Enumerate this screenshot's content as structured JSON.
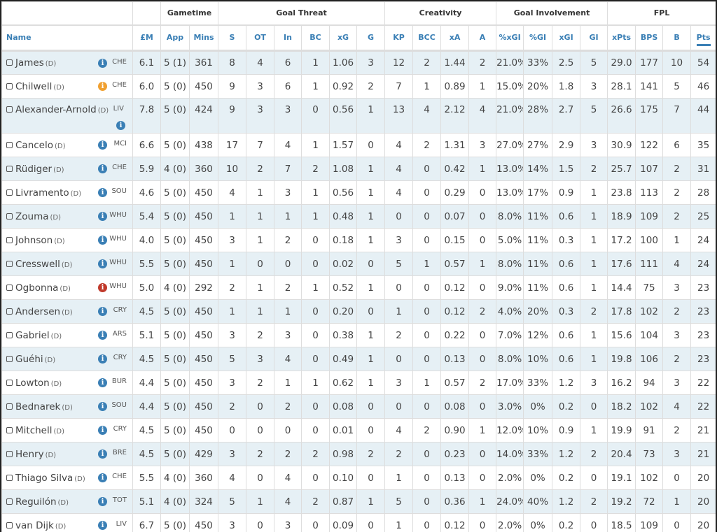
{
  "groups": [
    {
      "label": "",
      "span": 1
    },
    {
      "label": "",
      "span": 1
    },
    {
      "label": "Gametime",
      "span": 2
    },
    {
      "label": "Goal Threat",
      "span": 6
    },
    {
      "label": "Creativity",
      "span": 4
    },
    {
      "label": "Goal Involvement",
      "span": 4
    },
    {
      "label": "FPL",
      "span": 4
    }
  ],
  "columns": [
    "Name",
    "£M",
    "App",
    "Mins",
    "S",
    "OT",
    "In",
    "BC",
    "xG",
    "G",
    "KP",
    "BCC",
    "xA",
    "A",
    "%xGI",
    "%GI",
    "xGI",
    "GI",
    "xPts",
    "BPS",
    "B",
    "Pts"
  ],
  "sorted_column": "Pts",
  "info_colors": {
    "blue": "#3a7fb5",
    "orange": "#f0a030",
    "red": "#c0392b"
  },
  "rows": [
    {
      "name": "James",
      "pos": "(D)",
      "team": "CHE",
      "info": "blue",
      "v": [
        "6.1",
        "5 (1)",
        "361",
        "8",
        "4",
        "6",
        "1",
        "1.06",
        "3",
        "12",
        "2",
        "1.44",
        "2",
        "21.0%",
        "33%",
        "2.5",
        "5",
        "29.0",
        "177",
        "10",
        "54"
      ]
    },
    {
      "name": "Chilwell",
      "pos": "(D)",
      "team": "CHE",
      "info": "orange",
      "v": [
        "6.0",
        "5 (0)",
        "450",
        "9",
        "3",
        "6",
        "1",
        "0.92",
        "2",
        "7",
        "1",
        "0.89",
        "1",
        "15.0%",
        "20%",
        "1.8",
        "3",
        "28.1",
        "141",
        "5",
        "46"
      ]
    },
    {
      "name": "Alexander-Arnold",
      "pos": "(D)",
      "team": "LIV",
      "info": "blue",
      "v": [
        "7.8",
        "5 (0)",
        "424",
        "9",
        "3",
        "3",
        "0",
        "0.56",
        "1",
        "13",
        "4",
        "2.12",
        "4",
        "21.0%",
        "28%",
        "2.7",
        "5",
        "26.6",
        "175",
        "7",
        "44"
      ]
    },
    {
      "name": "Cancelo",
      "pos": "(D)",
      "team": "MCI",
      "info": "blue",
      "v": [
        "6.6",
        "5 (0)",
        "438",
        "17",
        "7",
        "4",
        "1",
        "1.57",
        "0",
        "4",
        "2",
        "1.31",
        "3",
        "27.0%",
        "27%",
        "2.9",
        "3",
        "30.9",
        "122",
        "6",
        "35"
      ]
    },
    {
      "name": "Rüdiger",
      "pos": "(D)",
      "team": "CHE",
      "info": "blue",
      "v": [
        "5.9",
        "4 (0)",
        "360",
        "10",
        "2",
        "7",
        "2",
        "1.08",
        "1",
        "4",
        "0",
        "0.42",
        "1",
        "13.0%",
        "14%",
        "1.5",
        "2",
        "25.7",
        "107",
        "2",
        "31"
      ]
    },
    {
      "name": "Livramento",
      "pos": "(D)",
      "team": "SOU",
      "info": "blue",
      "v": [
        "4.6",
        "5 (0)",
        "450",
        "4",
        "1",
        "3",
        "1",
        "0.56",
        "1",
        "4",
        "0",
        "0.29",
        "0",
        "13.0%",
        "17%",
        "0.9",
        "1",
        "23.8",
        "113",
        "2",
        "28"
      ]
    },
    {
      "name": "Zouma",
      "pos": "(D)",
      "team": "WHU",
      "info": "blue",
      "v": [
        "5.4",
        "5 (0)",
        "450",
        "1",
        "1",
        "1",
        "1",
        "0.48",
        "1",
        "0",
        "0",
        "0.07",
        "0",
        "8.0%",
        "11%",
        "0.6",
        "1",
        "18.9",
        "109",
        "2",
        "25"
      ]
    },
    {
      "name": "Johnson",
      "pos": "(D)",
      "team": "WHU",
      "info": "blue",
      "v": [
        "4.0",
        "5 (0)",
        "450",
        "3",
        "1",
        "2",
        "0",
        "0.18",
        "1",
        "3",
        "0",
        "0.15",
        "0",
        "5.0%",
        "11%",
        "0.3",
        "1",
        "17.2",
        "100",
        "1",
        "24"
      ]
    },
    {
      "name": "Cresswell",
      "pos": "(D)",
      "team": "WHU",
      "info": "blue",
      "v": [
        "5.5",
        "5 (0)",
        "450",
        "1",
        "0",
        "0",
        "0",
        "0.02",
        "0",
        "5",
        "1",
        "0.57",
        "1",
        "8.0%",
        "11%",
        "0.6",
        "1",
        "17.6",
        "111",
        "4",
        "24"
      ]
    },
    {
      "name": "Ogbonna",
      "pos": "(D)",
      "team": "WHU",
      "info": "red",
      "v": [
        "5.0",
        "4 (0)",
        "292",
        "2",
        "1",
        "2",
        "1",
        "0.52",
        "1",
        "0",
        "0",
        "0.12",
        "0",
        "9.0%",
        "11%",
        "0.6",
        "1",
        "14.4",
        "75",
        "3",
        "23"
      ]
    },
    {
      "name": "Andersen",
      "pos": "(D)",
      "team": "CRY",
      "info": "blue",
      "v": [
        "4.5",
        "5 (0)",
        "450",
        "1",
        "1",
        "1",
        "0",
        "0.20",
        "0",
        "1",
        "0",
        "0.12",
        "2",
        "4.0%",
        "20%",
        "0.3",
        "2",
        "17.8",
        "102",
        "2",
        "23"
      ]
    },
    {
      "name": "Gabriel",
      "pos": "(D)",
      "team": "ARS",
      "info": "blue",
      "v": [
        "5.1",
        "5 (0)",
        "450",
        "3",
        "2",
        "3",
        "0",
        "0.38",
        "1",
        "2",
        "0",
        "0.22",
        "0",
        "7.0%",
        "12%",
        "0.6",
        "1",
        "15.6",
        "104",
        "3",
        "23"
      ]
    },
    {
      "name": "Guéhi",
      "pos": "(D)",
      "team": "CRY",
      "info": "blue",
      "v": [
        "4.5",
        "5 (0)",
        "450",
        "5",
        "3",
        "4",
        "0",
        "0.49",
        "1",
        "0",
        "0",
        "0.13",
        "0",
        "8.0%",
        "10%",
        "0.6",
        "1",
        "19.8",
        "106",
        "2",
        "23"
      ]
    },
    {
      "name": "Lowton",
      "pos": "(D)",
      "team": "BUR",
      "info": "blue",
      "v": [
        "4.4",
        "5 (0)",
        "450",
        "3",
        "2",
        "1",
        "1",
        "0.62",
        "1",
        "3",
        "1",
        "0.57",
        "2",
        "17.0%",
        "33%",
        "1.2",
        "3",
        "16.2",
        "94",
        "3",
        "22"
      ]
    },
    {
      "name": "Bednarek",
      "pos": "(D)",
      "team": "SOU",
      "info": "blue",
      "v": [
        "4.4",
        "5 (0)",
        "450",
        "2",
        "0",
        "2",
        "0",
        "0.08",
        "0",
        "0",
        "0",
        "0.08",
        "0",
        "3.0%",
        "0%",
        "0.2",
        "0",
        "18.2",
        "102",
        "4",
        "22"
      ]
    },
    {
      "name": "Mitchell",
      "pos": "(D)",
      "team": "CRY",
      "info": "blue",
      "v": [
        "4.5",
        "5 (0)",
        "450",
        "0",
        "0",
        "0",
        "0",
        "0.01",
        "0",
        "4",
        "2",
        "0.90",
        "1",
        "12.0%",
        "10%",
        "0.9",
        "1",
        "19.9",
        "91",
        "2",
        "21"
      ]
    },
    {
      "name": "Henry",
      "pos": "(D)",
      "team": "BRE",
      "info": "blue",
      "v": [
        "4.5",
        "5 (0)",
        "429",
        "3",
        "2",
        "2",
        "2",
        "0.98",
        "2",
        "2",
        "0",
        "0.23",
        "0",
        "14.0%",
        "33%",
        "1.2",
        "2",
        "20.4",
        "73",
        "3",
        "21"
      ]
    },
    {
      "name": "Thiago Silva",
      "pos": "(D)",
      "team": "CHE",
      "info": "blue",
      "v": [
        "5.5",
        "4 (0)",
        "360",
        "4",
        "0",
        "4",
        "0",
        "0.10",
        "0",
        "1",
        "0",
        "0.13",
        "0",
        "2.0%",
        "0%",
        "0.2",
        "0",
        "19.1",
        "102",
        "0",
        "20"
      ]
    },
    {
      "name": "Reguilón",
      "pos": "(D)",
      "team": "TOT",
      "info": "blue",
      "v": [
        "5.1",
        "4 (0)",
        "324",
        "5",
        "1",
        "4",
        "2",
        "0.87",
        "1",
        "5",
        "0",
        "0.36",
        "1",
        "24.0%",
        "40%",
        "1.2",
        "2",
        "19.2",
        "72",
        "1",
        "20"
      ]
    },
    {
      "name": "van Dijk",
      "pos": "(D)",
      "team": "LIV",
      "info": "blue",
      "v": [
        "6.7",
        "5 (0)",
        "450",
        "3",
        "0",
        "3",
        "0",
        "0.09",
        "0",
        "1",
        "0",
        "0.12",
        "0",
        "2.0%",
        "0%",
        "0.2",
        "0",
        "18.5",
        "109",
        "0",
        "20"
      ]
    }
  ]
}
